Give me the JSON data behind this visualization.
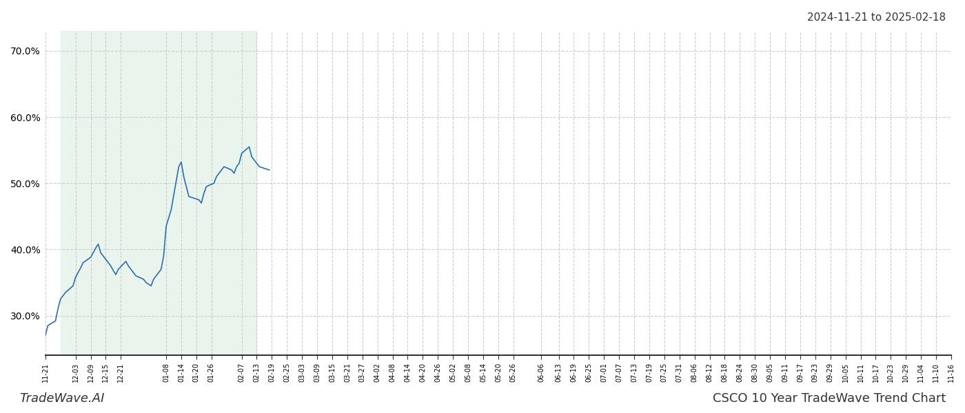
{
  "title_top_right": "2024-11-21 to 2025-02-18",
  "title_bottom_left": "TradeWave.AI",
  "title_bottom_right": "CSCO 10 Year TradeWave Trend Chart",
  "line_color": "#2b6cb0",
  "shade_color": "#d4edda",
  "shade_alpha": 0.5,
  "ylim": [
    24,
    73
  ],
  "yticks": [
    30.0,
    40.0,
    50.0,
    60.0,
    70.0
  ],
  "grid_color": "#cccccc",
  "grid_style": "--",
  "background_color": "#ffffff",
  "shade_start": "2024-11-27",
  "shade_end": "2025-02-13",
  "dates": [
    "2024-11-21",
    "2024-11-22",
    "2024-11-25",
    "2024-11-26",
    "2024-11-27",
    "2024-11-29",
    "2024-12-02",
    "2024-12-03",
    "2024-12-04",
    "2024-12-05",
    "2024-12-06",
    "2024-12-09",
    "2024-12-10",
    "2024-12-11",
    "2024-12-12",
    "2024-12-13",
    "2024-12-16",
    "2024-12-17",
    "2024-12-18",
    "2024-12-19",
    "2024-12-20",
    "2024-12-23",
    "2024-12-24",
    "2024-12-26",
    "2024-12-27",
    "2024-12-30",
    "2024-12-31",
    "2025-01-02",
    "2025-01-03",
    "2025-01-06",
    "2025-01-07",
    "2025-01-08",
    "2025-01-10",
    "2025-01-13",
    "2025-01-14",
    "2025-01-15",
    "2025-01-16",
    "2025-01-17",
    "2025-01-21",
    "2025-01-22",
    "2025-01-23",
    "2025-01-24",
    "2025-01-27",
    "2025-01-28",
    "2025-01-29",
    "2025-01-30",
    "2025-01-31",
    "2025-02-03",
    "2025-02-04",
    "2025-02-05",
    "2025-02-06",
    "2025-02-07",
    "2025-02-10",
    "2025-02-11",
    "2025-02-12",
    "2025-02-13",
    "2025-02-14",
    "2025-02-18"
  ],
  "values": [
    27.0,
    28.5,
    29.2,
    31.0,
    32.5,
    33.5,
    34.5,
    35.8,
    36.5,
    37.2,
    38.0,
    38.8,
    39.5,
    40.2,
    40.8,
    39.5,
    38.0,
    37.5,
    36.8,
    36.2,
    37.0,
    38.2,
    37.5,
    36.5,
    36.0,
    35.5,
    35.0,
    34.5,
    35.5,
    37.0,
    39.0,
    43.5,
    46.0,
    52.5,
    53.2,
    51.0,
    49.5,
    48.0,
    47.5,
    47.0,
    48.5,
    49.5,
    50.0,
    51.0,
    51.5,
    52.0,
    52.5,
    52.0,
    51.5,
    52.5,
    53.0,
    54.5,
    55.5,
    54.0,
    53.5,
    53.0,
    52.5,
    52.0
  ],
  "xtick_labels": [
    "11-21",
    "12-03",
    "12-09",
    "12-15",
    "12-21",
    "01-08",
    "01-14",
    "01-20",
    "01-26",
    "02-07",
    "02-13",
    "02-19",
    "02-25",
    "03-03",
    "03-09",
    "03-15",
    "03-21",
    "03-27",
    "04-02",
    "04-08",
    "04-14",
    "04-20",
    "04-26",
    "05-02",
    "05-08",
    "05-14",
    "05-20",
    "05-26",
    "06-06",
    "06-13",
    "06-19",
    "06-25",
    "07-01",
    "07-07",
    "07-13",
    "07-19",
    "07-25",
    "07-31",
    "08-06",
    "08-12",
    "08-18",
    "08-24",
    "08-30",
    "09-05",
    "09-11",
    "09-17",
    "09-23",
    "09-29",
    "10-05",
    "10-11",
    "10-17",
    "10-23",
    "10-29",
    "11-04",
    "11-10",
    "11-16"
  ]
}
